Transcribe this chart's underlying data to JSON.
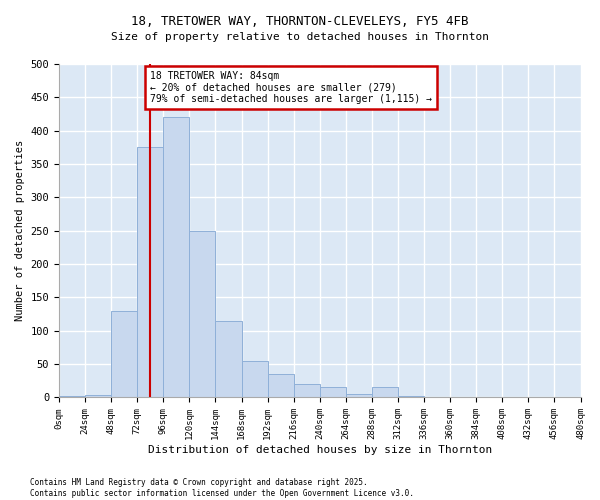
{
  "title_line1": "18, TRETOWER WAY, THORNTON-CLEVELEYS, FY5 4FB",
  "title_line2": "Size of property relative to detached houses in Thornton",
  "xlabel": "Distribution of detached houses by size in Thornton",
  "ylabel": "Number of detached properties",
  "bar_color": "#c8d8ee",
  "bar_edge_color": "#8fb0d8",
  "background_color": "#dce8f5",
  "grid_color": "#ffffff",
  "annotation_box_color": "#cc0000",
  "property_line_color": "#cc0000",
  "property_sqm": 84,
  "annotation_title": "18 TRETOWER WAY: 84sqm",
  "annotation_line2": "← 20% of detached houses are smaller (279)",
  "annotation_line3": "79% of semi-detached houses are larger (1,115) →",
  "footnote_line1": "Contains HM Land Registry data © Crown copyright and database right 2025.",
  "footnote_line2": "Contains public sector information licensed under the Open Government Licence v3.0.",
  "bin_starts": [
    0,
    24,
    48,
    72,
    96,
    120,
    144,
    168,
    192,
    216,
    240,
    264,
    288,
    312,
    336,
    360,
    384,
    408,
    432,
    456
  ],
  "bin_width": 24,
  "bar_heights": [
    2,
    3,
    130,
    375,
    420,
    250,
    115,
    55,
    35,
    20,
    15,
    5,
    15,
    2,
    0,
    0,
    0,
    0,
    0,
    0
  ],
  "ylim": [
    0,
    500
  ],
  "yticks": [
    0,
    50,
    100,
    150,
    200,
    250,
    300,
    350,
    400,
    450,
    500
  ],
  "xtick_labels": [
    "0sqm",
    "24sqm",
    "48sqm",
    "72sqm",
    "96sqm",
    "120sqm",
    "144sqm",
    "168sqm",
    "192sqm",
    "216sqm",
    "240sqm",
    "264sqm",
    "288sqm",
    "312sqm",
    "336sqm",
    "360sqm",
    "384sqm",
    "408sqm",
    "432sqm",
    "456sqm",
    "480sqm"
  ]
}
